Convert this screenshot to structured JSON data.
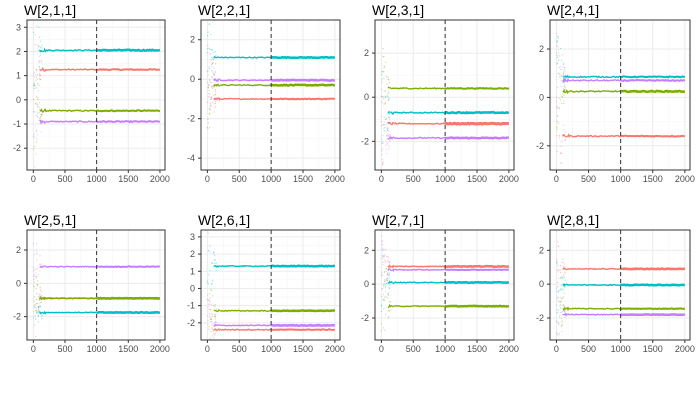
{
  "colors": {
    "panel_border": "#333333",
    "grid_major": "#ebebeb",
    "grid_minor": "#f5f5f5",
    "tick_text": "#4d4d4d",
    "title_text": "#000000",
    "vline": "#333333",
    "series": [
      "#f8766d",
      "#7cae00",
      "#00bfc4",
      "#c77cff"
    ]
  },
  "chart_data": [
    {
      "type": "line",
      "title": "W[2,1,1]",
      "xlim": [
        0,
        2000
      ],
      "x_ticks": [
        0,
        500,
        1000,
        1500,
        2000
      ],
      "ylim": [
        -2.9,
        3.3
      ],
      "y_ticks": [
        -2,
        -1,
        0,
        1,
        2,
        3
      ],
      "vline_x": 1000,
      "grid": true,
      "series": [
        {
          "color": "#f8766d",
          "level": 1.25,
          "width": 2.0
        },
        {
          "color": "#7cae00",
          "level": -0.45,
          "width": 2.0
        },
        {
          "color": "#00bfc4",
          "level": 2.05,
          "width": 2.5
        },
        {
          "color": "#c77cff",
          "level": -0.9,
          "width": 2.0
        }
      ]
    },
    {
      "type": "line",
      "title": "W[2,2,1]",
      "xlim": [
        0,
        2000
      ],
      "x_ticks": [
        0,
        500,
        1000,
        1500,
        2000
      ],
      "ylim": [
        -4.6,
        3.0
      ],
      "y_ticks": [
        -4,
        -2,
        0,
        2
      ],
      "vline_x": 1000,
      "grid": true,
      "series": [
        {
          "color": "#f8766d",
          "level": -1.0,
          "width": 2.0
        },
        {
          "color": "#7cae00",
          "level": -0.3,
          "width": 2.5
        },
        {
          "color": "#00bfc4",
          "level": 1.1,
          "width": 2.5
        },
        {
          "color": "#c77cff",
          "level": -0.05,
          "width": 2.5
        }
      ]
    },
    {
      "type": "line",
      "title": "W[2,3,1]",
      "xlim": [
        0,
        2000
      ],
      "x_ticks": [
        0,
        500,
        1000,
        1500,
        2000
      ],
      "ylim": [
        -3.3,
        3.5
      ],
      "y_ticks": [
        -2,
        0,
        2
      ],
      "vline_x": 1000,
      "grid": true,
      "series": [
        {
          "color": "#f8766d",
          "level": -1.2,
          "width": 3.0
        },
        {
          "color": "#7cae00",
          "level": 0.4,
          "width": 2.0
        },
        {
          "color": "#00bfc4",
          "level": -0.7,
          "width": 2.5
        },
        {
          "color": "#c77cff",
          "level": -1.85,
          "width": 2.5
        }
      ]
    },
    {
      "type": "line",
      "title": "W[2,4,1]",
      "xlim": [
        0,
        2000
      ],
      "x_ticks": [
        0,
        500,
        1000,
        1500,
        2000
      ],
      "ylim": [
        -3.0,
        3.2
      ],
      "y_ticks": [
        -2,
        0,
        2
      ],
      "vline_x": 1000,
      "grid": true,
      "series": [
        {
          "color": "#f8766d",
          "level": -1.6,
          "width": 2.0
        },
        {
          "color": "#7cae00",
          "level": 0.25,
          "width": 2.5
        },
        {
          "color": "#00bfc4",
          "level": 0.85,
          "width": 2.0
        },
        {
          "color": "#c77cff",
          "level": 0.7,
          "width": 2.0
        }
      ]
    },
    {
      "type": "line",
      "title": "W[2,5,1]",
      "xlim": [
        0,
        2000
      ],
      "x_ticks": [
        0,
        500,
        1000,
        1500,
        2000
      ],
      "ylim": [
        -3.4,
        3.2
      ],
      "y_ticks": [
        -2,
        0,
        2
      ],
      "vline_x": 1000,
      "grid": true,
      "series": [
        {
          "color": "#f8766d",
          "level": -0.9,
          "width": 2.0
        },
        {
          "color": "#7cae00",
          "level": -0.9,
          "width": 2.5
        },
        {
          "color": "#00bfc4",
          "level": -1.75,
          "width": 2.5
        },
        {
          "color": "#c77cff",
          "level": 1.0,
          "width": 2.0
        }
      ]
    },
    {
      "type": "line",
      "title": "W[2,6,1]",
      "xlim": [
        0,
        2000
      ],
      "x_ticks": [
        0,
        500,
        1000,
        1500,
        2000
      ],
      "ylim": [
        -3.0,
        3.4
      ],
      "y_ticks": [
        -2,
        -1,
        0,
        1,
        2,
        3
      ],
      "vline_x": 1000,
      "grid": true,
      "series": [
        {
          "color": "#f8766d",
          "level": -2.4,
          "width": 2.0
        },
        {
          "color": "#7cae00",
          "level": -1.3,
          "width": 2.5
        },
        {
          "color": "#00bfc4",
          "level": 1.3,
          "width": 2.5
        },
        {
          "color": "#c77cff",
          "level": -2.15,
          "width": 2.5
        }
      ]
    },
    {
      "type": "line",
      "title": "W[2,7,1]",
      "xlim": [
        0,
        2000
      ],
      "x_ticks": [
        0,
        500,
        1000,
        1500,
        2000
      ],
      "ylim": [
        -3.3,
        3.2
      ],
      "y_ticks": [
        -2,
        0,
        2
      ],
      "vline_x": 1000,
      "grid": true,
      "series": [
        {
          "color": "#f8766d",
          "level": 1.05,
          "width": 2.5
        },
        {
          "color": "#7cae00",
          "level": -1.3,
          "width": 2.5
        },
        {
          "color": "#00bfc4",
          "level": 0.1,
          "width": 2.5
        },
        {
          "color": "#c77cff",
          "level": 0.85,
          "width": 2.0
        }
      ]
    },
    {
      "type": "line",
      "title": "W[2,8,1]",
      "xlim": [
        0,
        2000
      ],
      "x_ticks": [
        0,
        500,
        1000,
        1500,
        2000
      ],
      "ylim": [
        -3.3,
        3.2
      ],
      "y_ticks": [
        -2,
        0,
        2
      ],
      "vline_x": 1000,
      "grid": true,
      "series": [
        {
          "color": "#f8766d",
          "level": 0.9,
          "width": 2.5
        },
        {
          "color": "#7cae00",
          "level": -1.45,
          "width": 2.0
        },
        {
          "color": "#00bfc4",
          "level": -0.05,
          "width": 2.5
        },
        {
          "color": "#c77cff",
          "level": -1.8,
          "width": 2.5
        }
      ]
    }
  ]
}
